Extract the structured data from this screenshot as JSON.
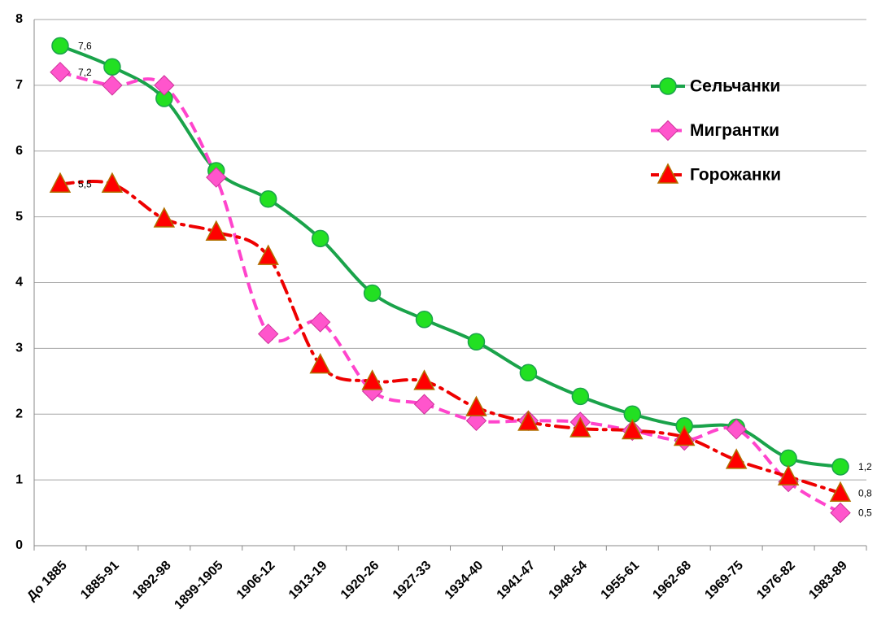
{
  "chart_data": {
    "type": "line",
    "categories": [
      "До 1885",
      "1885-91",
      "1892-98",
      "1899-1905",
      "1906-12",
      "1913-19",
      "1920-26",
      "1927-33",
      "1934-40",
      "1941-47",
      "1948-54",
      "1955-61",
      "1962-68",
      "1969-75",
      "1976-82",
      "1983-89"
    ],
    "series": [
      {
        "name": "Сельчанки",
        "color": "#1aa34a",
        "fill": "#22e022",
        "marker": "circle",
        "style": "solid",
        "values": [
          7.6,
          7.28,
          6.8,
          5.7,
          5.27,
          4.67,
          3.84,
          3.44,
          3.1,
          2.63,
          2.27,
          2.0,
          1.82,
          1.8,
          1.33,
          1.2
        ],
        "value_labels": [
          "7,6",
          null,
          null,
          null,
          null,
          null,
          null,
          null,
          null,
          null,
          null,
          null,
          null,
          null,
          null,
          "1,2"
        ]
      },
      {
        "name": "Мигрантки",
        "color": "#ff44cc",
        "fill": "#ff55cc",
        "marker": "diamond",
        "style": "dashed",
        "values": [
          7.2,
          7.0,
          7.0,
          5.6,
          3.22,
          3.4,
          2.35,
          2.15,
          1.9,
          1.9,
          1.88,
          1.75,
          1.6,
          1.77,
          0.97,
          0.5
        ],
        "value_labels": [
          "7,2",
          null,
          null,
          null,
          null,
          null,
          null,
          null,
          null,
          null,
          null,
          null,
          null,
          null,
          null,
          "0,5"
        ]
      },
      {
        "name": "Горожанки",
        "color": "#ee0000",
        "fill": "#ff0000",
        "marker": "triangle",
        "style": "dashdot",
        "values": [
          5.5,
          5.5,
          4.97,
          4.77,
          4.4,
          2.75,
          2.5,
          2.5,
          2.1,
          1.88,
          1.78,
          1.75,
          1.65,
          1.3,
          1.05,
          0.8
        ],
        "value_labels": [
          "5,5",
          null,
          null,
          null,
          null,
          null,
          null,
          null,
          null,
          null,
          null,
          null,
          null,
          null,
          null,
          "0,8"
        ]
      }
    ],
    "ylim": [
      0,
      8
    ],
    "yticks": [
      0,
      1,
      2,
      3,
      4,
      5,
      6,
      7,
      8
    ],
    "grid": true,
    "legend": "upper right"
  }
}
